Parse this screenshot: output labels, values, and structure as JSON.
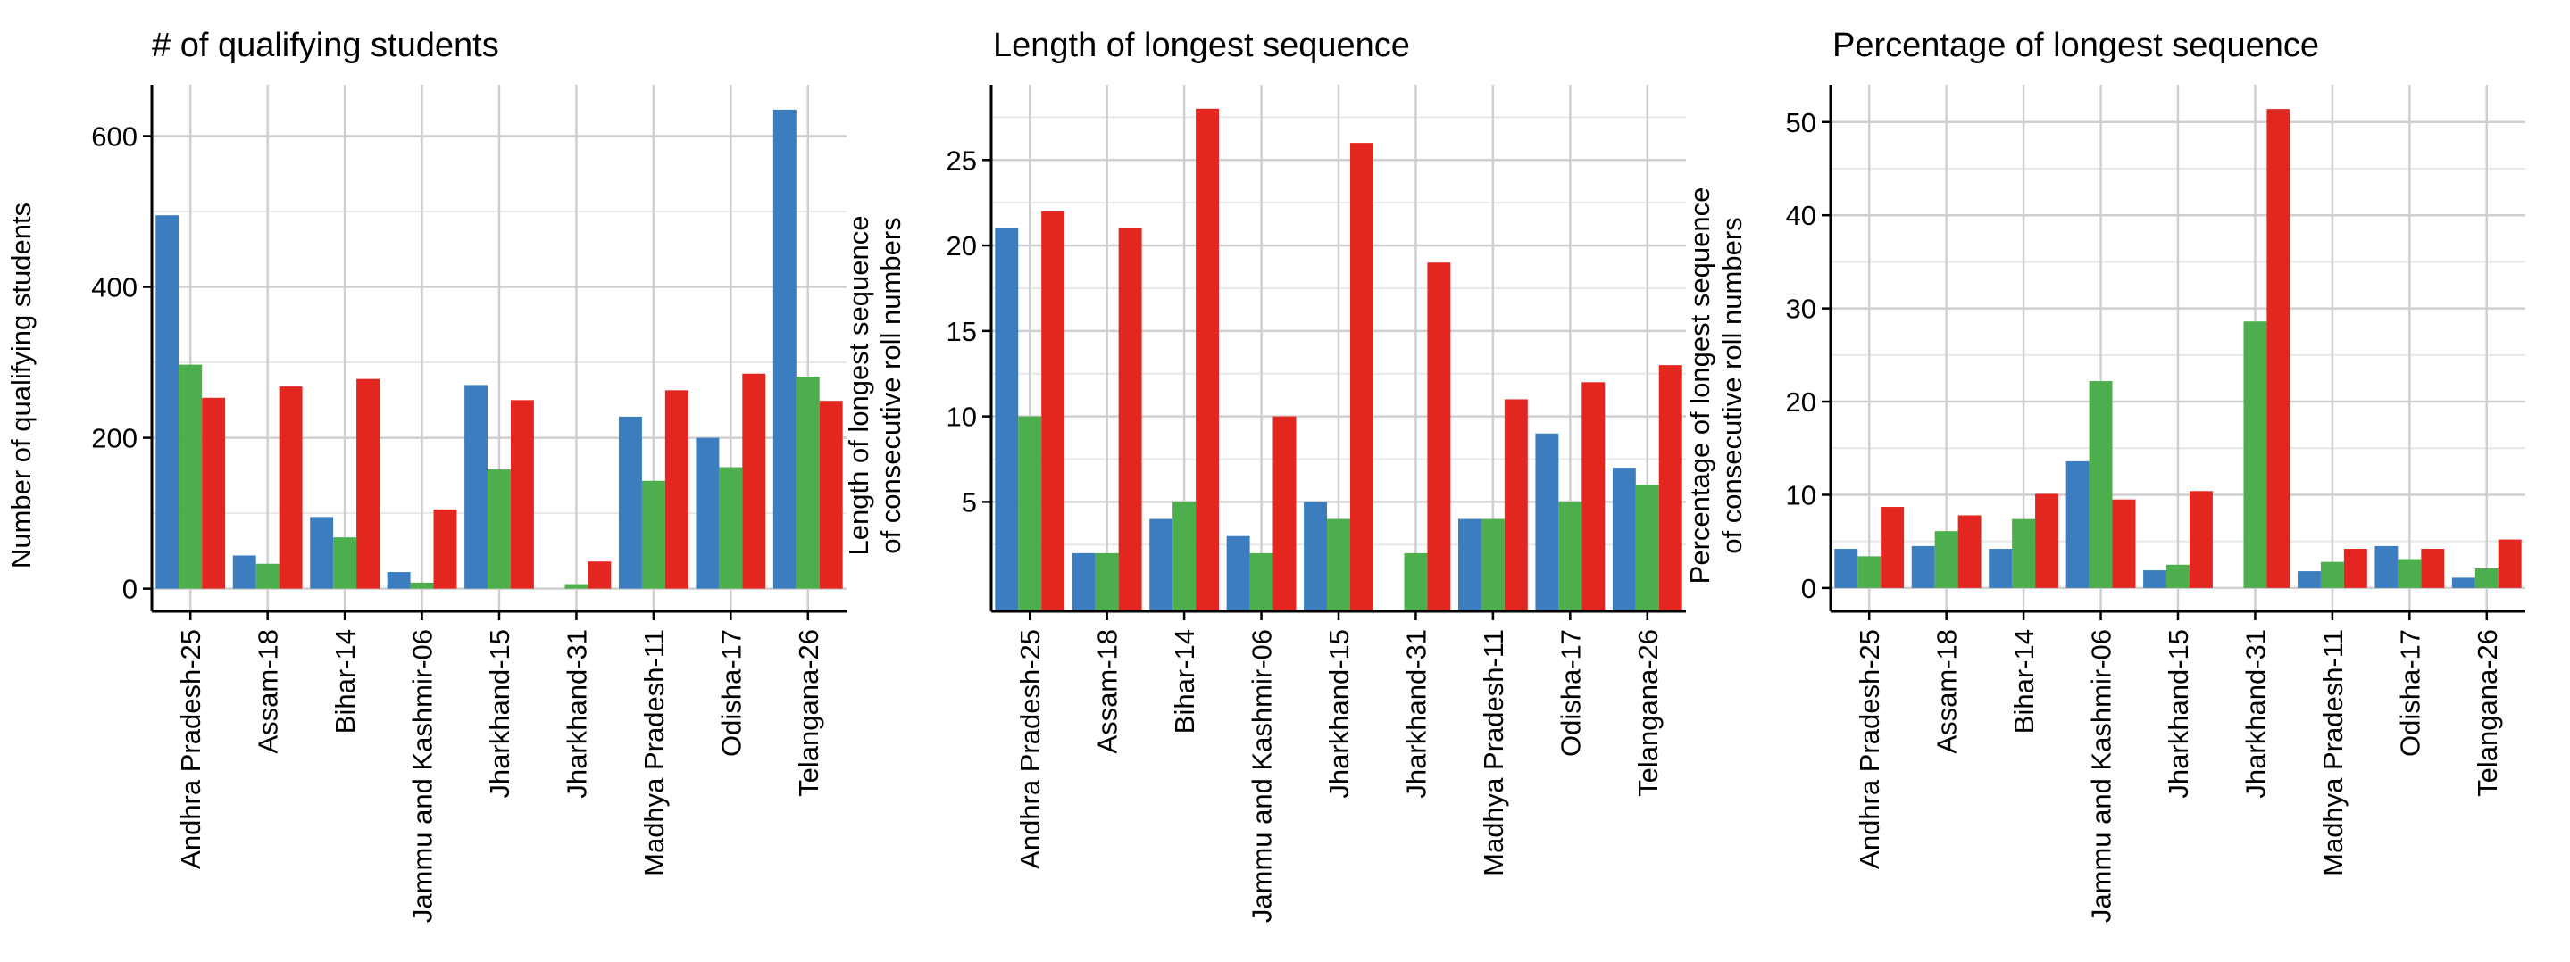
{
  "colors": {
    "series1": "#3b7dbf",
    "series2": "#4cae4c",
    "series3": "#e3261f",
    "grid_major": "#cfcfcf",
    "grid_minor": "#e8e8e8",
    "axis": "#000000"
  },
  "chart_data": [
    {
      "type": "bar",
      "title": "# of qualifying students",
      "ylabel": [
        "Number of qualifying students"
      ],
      "xlabel": "",
      "categories": [
        "Andhra Pradesh-25",
        "Assam-18",
        "Bihar-14",
        "Jammu and Kashmir-06",
        "Jharkhand-15",
        "Jharkhand-31",
        "Madhya Pradesh-11",
        "Odisha-17",
        "Telangana-26"
      ],
      "series": [
        {
          "values": [
            495,
            44,
            95,
            22,
            270,
            0,
            228,
            200,
            635
          ]
        },
        {
          "values": [
            297,
            33,
            68,
            8,
            158,
            6,
            143,
            161,
            281
          ]
        },
        {
          "values": [
            253,
            268,
            278,
            105,
            250,
            36,
            263,
            285,
            249
          ]
        }
      ],
      "ylim": [
        -30,
        668
      ],
      "yticks": [
        0,
        200,
        400,
        600
      ],
      "grid": true
    },
    {
      "type": "bar",
      "title": "Length of longest sequence",
      "ylabel": [
        "Length of longest sequence",
        "of consecutive roll numbers"
      ],
      "xlabel": "",
      "categories": [
        "Andhra Pradesh-25",
        "Assam-18",
        "Bihar-14",
        "Jammu and Kashmir-06",
        "Jharkhand-15",
        "Jharkhand-31",
        "Madhya Pradesh-11",
        "Odisha-17",
        "Telangana-26"
      ],
      "series": [
        {
          "values": [
            21,
            2,
            4,
            3,
            5,
            0,
            4,
            9,
            7
          ]
        },
        {
          "values": [
            10,
            2,
            5,
            2,
            4,
            2,
            4,
            5,
            6
          ]
        },
        {
          "values": [
            22,
            21,
            28,
            10,
            26,
            19,
            11,
            12,
            13
          ]
        }
      ],
      "ylim": [
        -1.4,
        29.4
      ],
      "yticks": [
        5,
        10,
        15,
        20,
        25
      ],
      "grid": true
    },
    {
      "type": "bar",
      "title": "Percentage of longest sequence",
      "ylabel": [
        "Percentage of longest sequence",
        "of consecutive roll numbers"
      ],
      "xlabel": "",
      "categories": [
        "Andhra Pradesh-25",
        "Assam-18",
        "Bihar-14",
        "Jammu and Kashmir-06",
        "Jharkhand-15",
        "Jharkhand-31",
        "Madhya Pradesh-11",
        "Odisha-17",
        "Telangana-26"
      ],
      "series": [
        {
          "values": [
            4.2,
            4.5,
            4.2,
            13.6,
            1.9,
            0,
            1.8,
            4.5,
            1.1
          ]
        },
        {
          "values": [
            3.4,
            6.1,
            7.4,
            22.2,
            2.5,
            28.6,
            2.8,
            3.1,
            2.1
          ]
        },
        {
          "values": [
            8.7,
            7.8,
            10.1,
            9.5,
            10.4,
            51.4,
            4.2,
            4.2,
            5.2
          ]
        }
      ],
      "ylim": [
        -2.5,
        54
      ],
      "yticks": [
        0,
        10,
        20,
        30,
        40,
        50
      ],
      "grid": true
    }
  ]
}
